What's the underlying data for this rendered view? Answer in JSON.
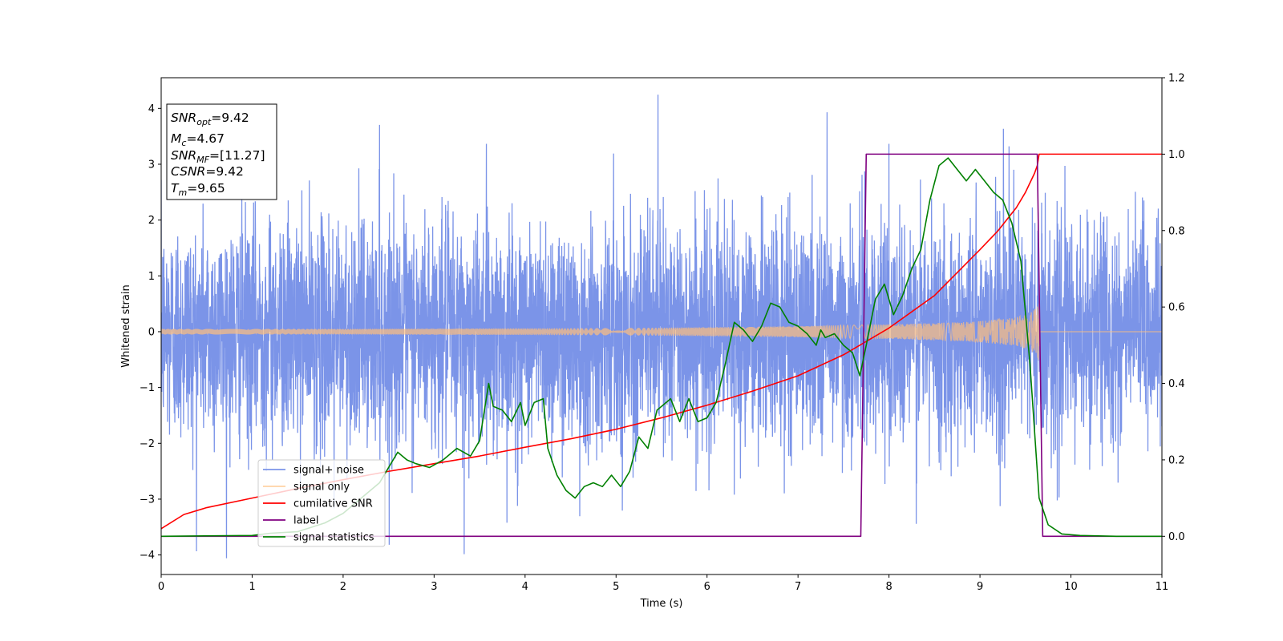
{
  "chart_data": {
    "type": "line",
    "xlabel": "Time (s)",
    "ylabel": "Whitened strain",
    "xlim": [
      0,
      11
    ],
    "ylim_left": [
      -4.35,
      4.55
    ],
    "ylim_right": [
      -0.1,
      1.2
    ],
    "xticks": [
      "0",
      "1",
      "2",
      "3",
      "4",
      "5",
      "6",
      "7",
      "8",
      "9",
      "10",
      "11"
    ],
    "yticks_left": [
      "−4",
      "−3",
      "−2",
      "−1",
      "0",
      "1",
      "2",
      "3",
      "4"
    ],
    "yticks_right": [
      "0.0",
      "0.2",
      "0.4",
      "0.6",
      "0.8",
      "1.0",
      "1.2"
    ],
    "legend_position": "lower-left",
    "annotation": {
      "snr_opt": {
        "main": "SNR",
        "sub": "opt",
        "value": "=9.42"
      },
      "mc": {
        "main": "M",
        "sub": "c",
        "value": "=4.67"
      },
      "snr_mf": {
        "main": "SNR",
        "sub": "MF",
        "value": "=[11.27]"
      },
      "csnr": {
        "main": "CSNR",
        "value": "=9.42"
      },
      "tm": {
        "main": "T",
        "sub": "m",
        "value": "=9.65"
      }
    },
    "series": [
      {
        "name": "signal+ noise",
        "axis": "left",
        "color": "#7b94e8",
        "description_values": "noise approx. N(0,1), peaks near 4.18 at t=5.46, 4.0 at t=7.32, -3.95 at t=3.33",
        "peaks": [
          [
            5.46,
            4.18
          ],
          [
            7.32,
            4.0
          ],
          [
            2.4,
            3.75
          ],
          [
            9.32,
            3.5
          ],
          [
            8.0,
            3.28
          ],
          [
            3.33,
            -3.95
          ],
          [
            3.8,
            -3.45
          ],
          [
            4.6,
            -3.3
          ],
          [
            8.3,
            -3.3
          ],
          [
            1.9,
            -3.2
          ],
          [
            6.3,
            -3.0
          ]
        ]
      },
      {
        "name": "signal only",
        "axis": "left",
        "color": "#ffbf7f",
        "envelope_t": [
          0,
          1,
          2,
          3,
          4,
          5,
          6,
          6.5,
          7,
          7.5,
          8,
          8.5,
          8.8,
          9.0,
          9.2,
          9.4,
          9.5,
          9.58,
          9.63,
          9.65,
          9.66,
          11
        ],
        "envelope_amp": [
          0.05,
          0.05,
          0.05,
          0.055,
          0.06,
          0.065,
          0.08,
          0.09,
          0.1,
          0.115,
          0.13,
          0.155,
          0.17,
          0.19,
          0.22,
          0.26,
          0.3,
          0.36,
          0.45,
          0.55,
          0.0,
          0.0
        ]
      },
      {
        "name": "cumilative SNR",
        "axis": "right",
        "color": "#ff0000",
        "x": [
          0,
          0.25,
          0.5,
          1,
          1.5,
          2,
          2.5,
          3,
          3.5,
          4,
          4.5,
          5,
          5.5,
          6,
          6.5,
          7,
          7.5,
          8,
          8.5,
          9,
          9.2,
          9.4,
          9.5,
          9.55,
          9.6,
          9.63,
          9.65,
          11
        ],
        "y": [
          0.02,
          0.057,
          0.075,
          0.1,
          0.125,
          0.148,
          0.17,
          0.19,
          0.21,
          0.233,
          0.255,
          0.28,
          0.31,
          0.343,
          0.38,
          0.42,
          0.475,
          0.545,
          0.63,
          0.75,
          0.8,
          0.86,
          0.9,
          0.925,
          0.95,
          0.97,
          1.0,
          1.0
        ]
      },
      {
        "name": "label",
        "axis": "right",
        "color": "#800080",
        "x": [
          0,
          7.69,
          7.75,
          9.63,
          9.69,
          11
        ],
        "y": [
          0.0,
          0.0,
          1.0,
          1.0,
          0.0,
          0.0
        ]
      },
      {
        "name": "signal statistics",
        "axis": "right",
        "color": "#008000",
        "x": [
          0,
          1.0,
          1.2,
          1.5,
          1.8,
          2.0,
          2.2,
          2.4,
          2.6,
          2.7,
          2.8,
          2.95,
          3.1,
          3.25,
          3.4,
          3.5,
          3.6,
          3.65,
          3.75,
          3.85,
          3.95,
          4.0,
          4.1,
          4.2,
          4.25,
          4.35,
          4.45,
          4.55,
          4.65,
          4.75,
          4.85,
          4.95,
          5.05,
          5.15,
          5.25,
          5.35,
          5.45,
          5.6,
          5.7,
          5.8,
          5.9,
          6.0,
          6.1,
          6.2,
          6.3,
          6.4,
          6.5,
          6.6,
          6.7,
          6.8,
          6.9,
          7.0,
          7.1,
          7.2,
          7.25,
          7.3,
          7.4,
          7.5,
          7.6,
          7.68,
          7.75,
          7.85,
          7.95,
          8.05,
          8.15,
          8.25,
          8.35,
          8.45,
          8.55,
          8.65,
          8.75,
          8.85,
          8.95,
          9.05,
          9.15,
          9.25,
          9.35,
          9.45,
          9.55,
          9.65,
          9.75,
          9.9,
          10.1,
          10.5,
          11
        ],
        "y": [
          0.0,
          0.002,
          0.008,
          0.012,
          0.035,
          0.06,
          0.1,
          0.14,
          0.22,
          0.2,
          0.19,
          0.18,
          0.2,
          0.23,
          0.21,
          0.25,
          0.4,
          0.34,
          0.33,
          0.3,
          0.35,
          0.29,
          0.35,
          0.36,
          0.23,
          0.16,
          0.12,
          0.1,
          0.13,
          0.14,
          0.13,
          0.16,
          0.13,
          0.17,
          0.26,
          0.23,
          0.33,
          0.36,
          0.3,
          0.36,
          0.3,
          0.31,
          0.35,
          0.45,
          0.56,
          0.54,
          0.51,
          0.55,
          0.61,
          0.6,
          0.56,
          0.55,
          0.53,
          0.5,
          0.54,
          0.52,
          0.53,
          0.5,
          0.48,
          0.42,
          0.5,
          0.62,
          0.66,
          0.58,
          0.63,
          0.7,
          0.75,
          0.88,
          0.97,
          0.99,
          0.96,
          0.93,
          0.96,
          0.93,
          0.9,
          0.88,
          0.82,
          0.72,
          0.45,
          0.1,
          0.03,
          0.006,
          0.002,
          0.0,
          0.0
        ]
      }
    ]
  }
}
